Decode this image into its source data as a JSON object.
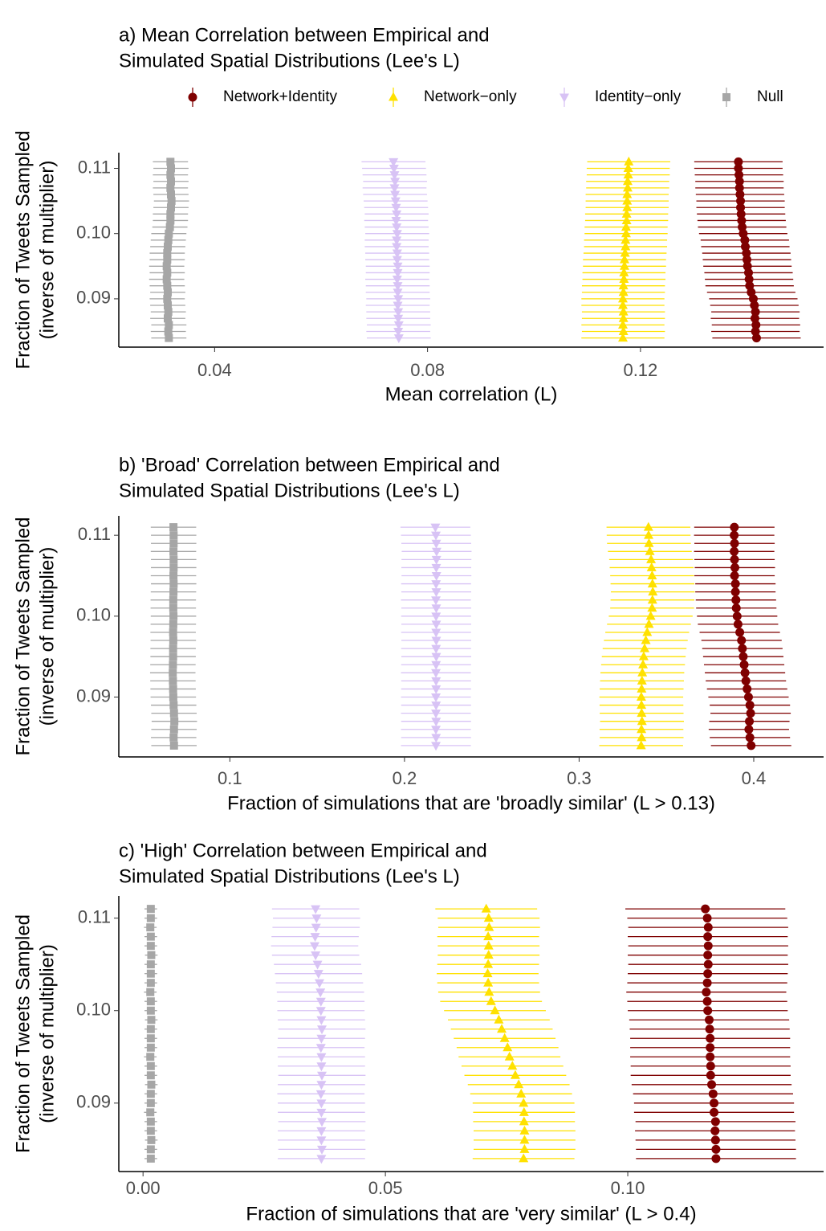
{
  "chart_data": [
    {
      "type": "errorbar-dot",
      "title": [
        "a) Mean Correlation between Empirical and",
        "Simulated Spatial Distributions (Lee's L)"
      ],
      "xlabel": "Mean correlation (L)",
      "ylabel": [
        "Fraction of Tweets Sampled",
        "(inverse of multiplier)"
      ],
      "legend": "top",
      "xlim": [
        0.022,
        0.1544
      ],
      "xticks": [
        0.04,
        0.08,
        0.12
      ],
      "ylim": [
        0.0826,
        0.1124
      ],
      "yticks": [
        0.09,
        {
          "value": 0.1,
          "label": "0.10"
        },
        0.11
      ],
      "y": [
        0.084,
        0.085,
        0.086,
        0.087,
        0.088,
        0.089,
        0.09,
        0.091,
        0.092,
        0.093,
        0.094,
        0.095,
        0.096,
        0.097,
        0.098,
        0.099,
        0.1,
        0.101,
        0.102,
        0.103,
        0.104,
        0.105,
        0.106,
        0.107,
        0.108,
        0.109,
        0.11,
        0.111
      ],
      "series": [
        {
          "name": "Network+Identity",
          "color": "#7f0000",
          "shape": "circle",
          "error": 0.0083,
          "values": [
            0.1418,
            0.1416,
            0.1417,
            0.1415,
            0.1416,
            0.1414,
            0.1412,
            0.1408,
            0.1405,
            0.1404,
            0.1403,
            0.1401,
            0.14,
            0.1399,
            0.1397,
            0.1396,
            0.1393,
            0.1391,
            0.139,
            0.1389,
            0.1388,
            0.1388,
            0.1387,
            0.1386,
            0.1386,
            0.1385,
            0.1384,
            0.1384
          ]
        },
        {
          "name": "Network−only",
          "color": "#ffe100",
          "shape": "triangle-up",
          "error": 0.0078,
          "values": [
            0.1167,
            0.1168,
            0.1167,
            0.1168,
            0.1168,
            0.1167,
            0.1167,
            0.1168,
            0.1168,
            0.1169,
            0.1169,
            0.117,
            0.117,
            0.1171,
            0.1172,
            0.1172,
            0.1173,
            0.1173,
            0.1174,
            0.1174,
            0.1175,
            0.1175,
            0.1175,
            0.1176,
            0.1176,
            0.1177,
            0.1177,
            0.1178
          ]
        },
        {
          "name": "Identity−only",
          "color": "#d8c3f5",
          "shape": "triangle-down",
          "error": 0.006,
          "values": [
            0.0746,
            0.0745,
            0.0746,
            0.0745,
            0.0745,
            0.0744,
            0.0745,
            0.0744,
            0.0744,
            0.0743,
            0.0744,
            0.0744,
            0.0743,
            0.0743,
            0.0742,
            0.0742,
            0.0743,
            0.0742,
            0.0741,
            0.0742,
            0.0741,
            0.074,
            0.0739,
            0.0738,
            0.0739,
            0.0738,
            0.0737,
            0.0736
          ]
        },
        {
          "name": "Null",
          "color": "#a6a6a6",
          "shape": "square",
          "error": 0.0033,
          "values": [
            0.0314,
            0.0313,
            0.0314,
            0.0312,
            0.0313,
            0.0312,
            0.0311,
            0.0312,
            0.0311,
            0.031,
            0.0311,
            0.031,
            0.0311,
            0.0311,
            0.0312,
            0.0313,
            0.0314,
            0.0316,
            0.0317,
            0.0317,
            0.0318,
            0.0319,
            0.0318,
            0.0317,
            0.0318,
            0.0317,
            0.0318,
            0.0317
          ]
        }
      ]
    },
    {
      "type": "errorbar-dot",
      "title": [
        "b) 'Broad' Correlation between Empirical and",
        "Simulated Spatial Distributions (Lee's L)"
      ],
      "xlabel": "Fraction of simulations that are 'broadly similar' (L > 0.13)",
      "ylabel": [
        "Fraction of Tweets Sampled",
        "(inverse of multiplier)"
      ],
      "xlim": [
        0.0364,
        0.44
      ],
      "xticks": [
        0.1,
        0.2,
        0.3,
        0.4
      ],
      "ylim": [
        0.0826,
        0.1124
      ],
      "yticks": [
        0.09,
        {
          "value": 0.1,
          "label": "0.10"
        },
        0.11
      ],
      "y": [
        0.084,
        0.085,
        0.086,
        0.087,
        0.088,
        0.089,
        0.09,
        0.091,
        0.092,
        0.093,
        0.094,
        0.095,
        0.096,
        0.097,
        0.098,
        0.099,
        0.1,
        0.101,
        0.102,
        0.103,
        0.104,
        0.105,
        0.106,
        0.107,
        0.108,
        0.109,
        0.11,
        0.111
      ],
      "series": [
        {
          "color": "#7f0000",
          "shape": "circle",
          "error": 0.023,
          "values": [
            0.3985,
            0.3978,
            0.3972,
            0.3975,
            0.3982,
            0.3978,
            0.397,
            0.3962,
            0.3955,
            0.395,
            0.3945,
            0.394,
            0.3935,
            0.393,
            0.392,
            0.391,
            0.3905,
            0.39,
            0.3898,
            0.3895,
            0.3895,
            0.389,
            0.3892,
            0.389,
            0.3888,
            0.389,
            0.3888,
            0.3889
          ]
        },
        {
          "color": "#ffe100",
          "shape": "triangle-up",
          "error": 0.024,
          "values": [
            0.3355,
            0.3358,
            0.3357,
            0.336,
            0.3358,
            0.3357,
            0.3356,
            0.3358,
            0.336,
            0.3362,
            0.3366,
            0.337,
            0.3375,
            0.3382,
            0.339,
            0.34,
            0.341,
            0.3418,
            0.342,
            0.3422,
            0.342,
            0.3418,
            0.3415,
            0.3412,
            0.3405,
            0.34,
            0.3398,
            0.3397
          ]
        },
        {
          "color": "#d8c3f5",
          "shape": "triangle-down",
          "error": 0.02,
          "values": [
            0.218,
            0.2181,
            0.218,
            0.2181,
            0.218,
            0.2181,
            0.218,
            0.2181,
            0.2181,
            0.218,
            0.2181,
            0.2182,
            0.2181,
            0.2182,
            0.2181,
            0.2182,
            0.2181,
            0.2182,
            0.218,
            0.2182,
            0.2181,
            0.2183,
            0.2182,
            0.2183,
            0.2184,
            0.2182,
            0.218,
            0.2177
          ]
        },
        {
          "color": "#a6a6a6",
          "shape": "square",
          "error": 0.013,
          "values": [
            0.068,
            0.0678,
            0.068,
            0.0682,
            0.068,
            0.0678,
            0.0676,
            0.0675,
            0.0674,
            0.0673,
            0.0674,
            0.0675,
            0.0675,
            0.0676,
            0.0675,
            0.0676,
            0.0677,
            0.0676,
            0.0676,
            0.0677,
            0.0678,
            0.0677,
            0.0678,
            0.0678,
            0.0677,
            0.0678,
            0.0678,
            0.0677
          ]
        }
      ]
    },
    {
      "type": "errorbar-dot",
      "title": [
        "c) 'High' Correlation between Empirical and",
        "Simulated Spatial Distributions (Lee's L)"
      ],
      "xlabel": "Fraction of simulations that are 'very similar' (L > 0.4)",
      "ylabel": [
        "Fraction of Tweets Sampled",
        "(inverse of multiplier)"
      ],
      "xlim": [
        -0.005,
        0.1404
      ],
      "xticks": [
        {
          "value": 0,
          "label": "0.00"
        },
        0.05,
        {
          "value": 0.1,
          "label": "0.10"
        }
      ],
      "ylim": [
        0.0826,
        0.1124
      ],
      "yticks": [
        0.09,
        {
          "value": 0.1,
          "label": "0.10"
        },
        0.11
      ],
      "y": [
        0.084,
        0.085,
        0.086,
        0.087,
        0.088,
        0.089,
        0.09,
        0.091,
        0.092,
        0.093,
        0.094,
        0.095,
        0.096,
        0.097,
        0.098,
        0.099,
        0.1,
        0.101,
        0.102,
        0.103,
        0.104,
        0.105,
        0.106,
        0.107,
        0.108,
        0.109,
        0.11,
        0.111
      ],
      "series": [
        {
          "color": "#7f0000",
          "shape": "circle",
          "error": 0.0165,
          "values": [
            0.1182,
            0.1182,
            0.1181,
            0.118,
            0.1181,
            0.1178,
            0.1178,
            0.1176,
            0.1173,
            0.1171,
            0.1171,
            0.117,
            0.117,
            0.117,
            0.1169,
            0.1168,
            0.1165,
            0.1164,
            0.1162,
            0.1164,
            0.1165,
            0.1166,
            0.1165,
            0.1166,
            0.1165,
            0.1166,
            0.1164,
            0.116
          ]
        },
        {
          "color": "#ffe100",
          "shape": "triangle-up",
          "error": 0.0105,
          "values": [
            0.0785,
            0.0787,
            0.0787,
            0.0787,
            0.0786,
            0.0786,
            0.0785,
            0.078,
            0.0775,
            0.0768,
            0.0762,
            0.0756,
            0.0752,
            0.0746,
            0.074,
            0.0734,
            0.0726,
            0.0718,
            0.0714,
            0.0712,
            0.0711,
            0.0712,
            0.0713,
            0.0713,
            0.0712,
            0.0714,
            0.0713,
            0.0708
          ]
        },
        {
          "color": "#d8c3f5",
          "shape": "triangle-down",
          "error": 0.009,
          "values": [
            0.0368,
            0.0369,
            0.0368,
            0.0368,
            0.0369,
            0.0368,
            0.0368,
            0.0367,
            0.0368,
            0.0369,
            0.0368,
            0.0368,
            0.0367,
            0.0368,
            0.0369,
            0.0368,
            0.0367,
            0.0367,
            0.0366,
            0.0364,
            0.0362,
            0.036,
            0.0356,
            0.0354,
            0.0355,
            0.0357,
            0.0358,
            0.0356
          ]
        },
        {
          "color": "#a6a6a6",
          "shape": "square",
          "error": 0.0013,
          "values": [
            0.0016,
            0.0016,
            0.0017,
            0.0016,
            0.0016,
            0.0015,
            0.0016,
            0.0016,
            0.0017,
            0.0016,
            0.0016,
            0.0015,
            0.0016,
            0.0016,
            0.0016,
            0.0017,
            0.0016,
            0.0016,
            0.0015,
            0.0016,
            0.0016,
            0.0016,
            0.0017,
            0.0016,
            0.0016,
            0.0015,
            0.0016,
            0.0016
          ]
        }
      ]
    }
  ]
}
